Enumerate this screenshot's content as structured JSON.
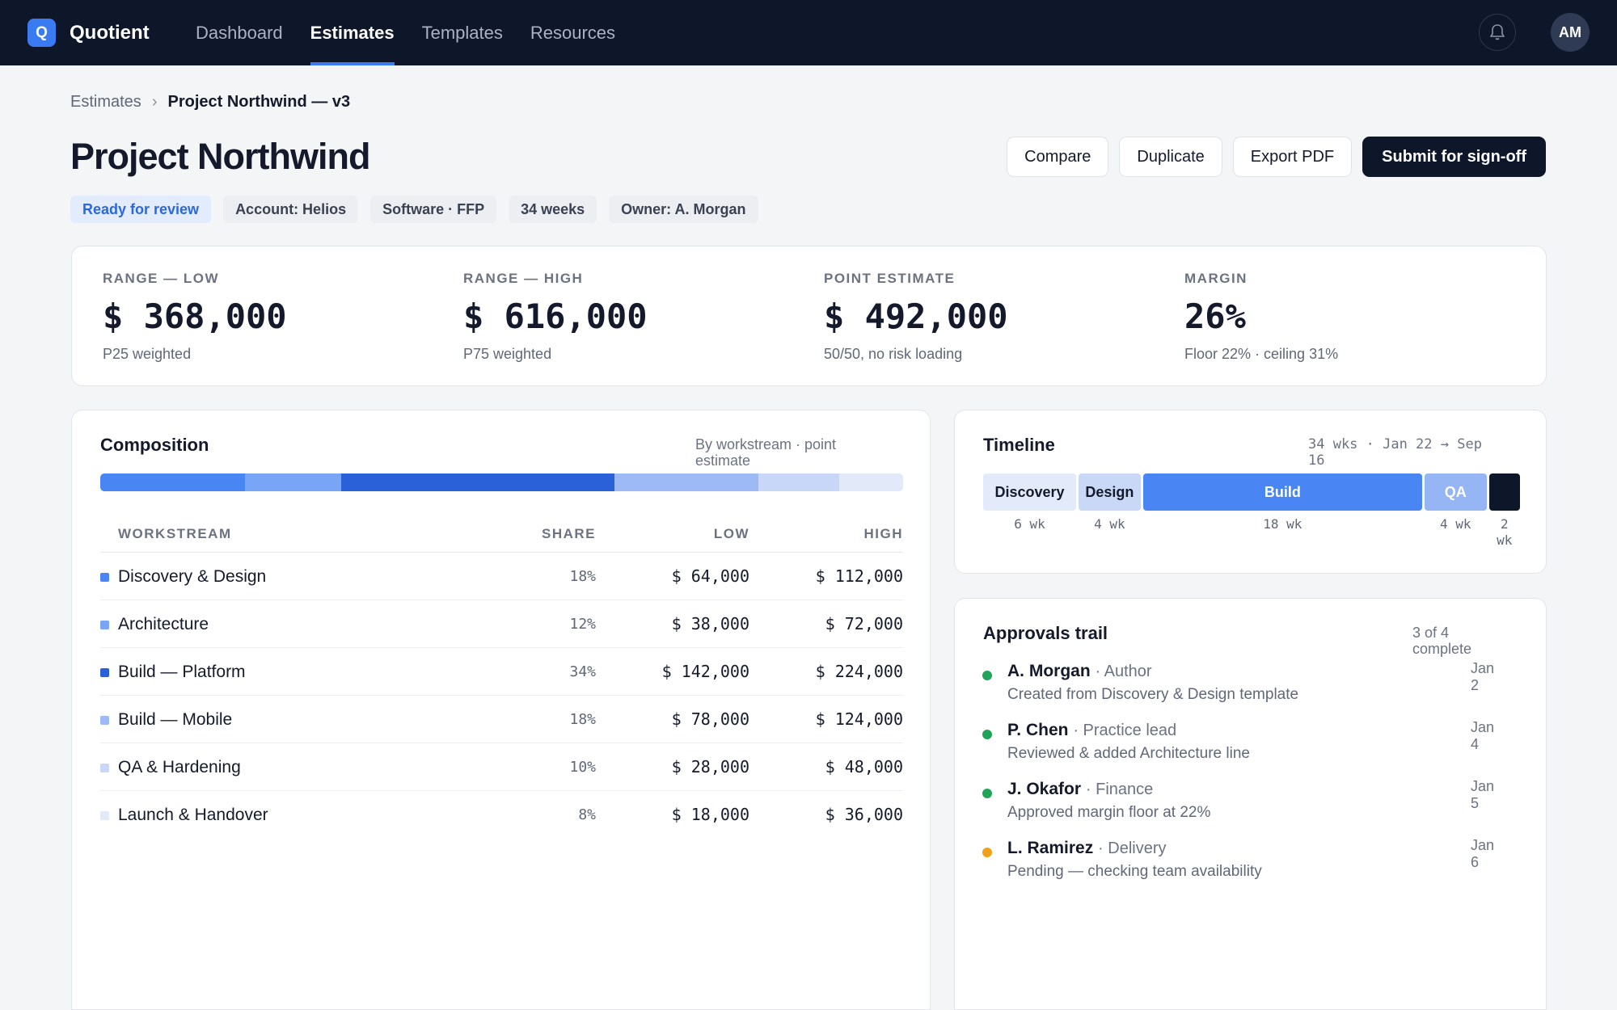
{
  "app": {
    "logo_letter": "Q",
    "name": "Quotient",
    "nav": [
      "Dashboard",
      "Estimates",
      "Templates",
      "Resources"
    ],
    "active_nav": "Estimates",
    "user_initials": "AM"
  },
  "breadcrumb": {
    "parent": "Estimates",
    "separator": "›",
    "current": "Project Northwind — v3"
  },
  "page": {
    "title": "Project Northwind",
    "actions": {
      "compare": "Compare",
      "duplicate": "Duplicate",
      "export": "Export PDF",
      "submit": "Submit for sign-off"
    },
    "tags": {
      "status": "Ready for review",
      "account": "Account: Helios",
      "type": "Software · FFP",
      "duration": "34 weeks",
      "owner": "Owner: A. Morgan"
    }
  },
  "stats": [
    {
      "label": "RANGE — LOW",
      "value": "$ 368,000",
      "sub": "P25 weighted"
    },
    {
      "label": "RANGE — HIGH",
      "value": "$ 616,000",
      "sub": "P75 weighted"
    },
    {
      "label": "POINT ESTIMATE",
      "value": "$ 492,000",
      "sub": "50/50, no risk loading"
    },
    {
      "label": "MARGIN",
      "value": "26%",
      "sub": "Floor 22% · ceiling 31%"
    }
  ],
  "composition": {
    "title": "Composition",
    "note": "By workstream · point estimate",
    "headers": {
      "workstream": "WORKSTREAM",
      "share": "SHARE",
      "low": "LOW",
      "high": "HIGH"
    },
    "rows": [
      {
        "name": "Discovery & Design",
        "share": "18%",
        "share_value": 18,
        "low": "$ 64,000",
        "high": "$ 112,000",
        "color": "#4a86f3"
      },
      {
        "name": "Architecture",
        "share": "12%",
        "share_value": 12,
        "low": "$ 38,000",
        "high": "$ 72,000",
        "color": "#79a5f6"
      },
      {
        "name": "Build — Platform",
        "share": "34%",
        "share_value": 34,
        "low": "$ 142,000",
        "high": "$ 224,000",
        "color": "#2b61d8"
      },
      {
        "name": "Build — Mobile",
        "share": "18%",
        "share_value": 18,
        "low": "$ 78,000",
        "high": "$ 124,000",
        "color": "#9dbaf6"
      },
      {
        "name": "QA & Hardening",
        "share": "10%",
        "share_value": 10,
        "low": "$ 28,000",
        "high": "$ 48,000",
        "color": "#c8d7f7"
      },
      {
        "name": "Launch & Handover",
        "share": "8%",
        "share_value": 8,
        "low": "$ 18,000",
        "high": "$ 36,000",
        "color": "#e2e9f8"
      }
    ]
  },
  "timeline": {
    "title": "Timeline",
    "note_line1": "34 wks · Jan 22 → Sep",
    "note_line2": "16",
    "phases": [
      {
        "label": "Discovery",
        "weeks_label": "6 wk",
        "weeks": 6,
        "bg": "#e3ebfb",
        "fg": "#141a2b"
      },
      {
        "label": "Design",
        "weeks_label": "4 wk",
        "weeks": 4,
        "bg": "#c9d8f6",
        "fg": "#141a2b"
      },
      {
        "label": "Build",
        "weeks_label": "18 wk",
        "weeks": 18,
        "bg": "#4a86f3",
        "fg": "#ffffff"
      },
      {
        "label": "QA",
        "weeks_label": "4 wk",
        "weeks": 4,
        "bg": "#95b5f5",
        "fg": "#ffffff"
      },
      {
        "label": "",
        "weeks_label_line1": "2",
        "weeks_label_line2": "wk",
        "weeks": 2,
        "bg": "#0e1629",
        "fg": "#ffffff"
      }
    ]
  },
  "approvals": {
    "title": "Approvals trail",
    "progress_line1": "3 of 4",
    "progress_line2": "complete",
    "items": [
      {
        "name": "A. Morgan",
        "role": "· Author",
        "desc": "Created from Discovery & Design template",
        "date_m": "Jan",
        "date_d": "2",
        "status": "done",
        "color": "#22a35a"
      },
      {
        "name": "P. Chen",
        "role": "· Practice lead",
        "desc": "Reviewed & added Architecture line",
        "date_m": "Jan",
        "date_d": "4",
        "status": "done",
        "color": "#22a35a"
      },
      {
        "name": "J. Okafor",
        "role": "· Finance",
        "desc": "Approved margin floor at 22%",
        "date_m": "Jan",
        "date_d": "5",
        "status": "done",
        "color": "#22a35a"
      },
      {
        "name": "L. Ramirez",
        "role": "· Delivery",
        "desc": "Pending — checking team availability",
        "date_m": "Jan",
        "date_d": "6",
        "status": "pending",
        "color": "#f0a11a"
      }
    ]
  },
  "icons": {
    "bell": "bell-icon",
    "breadcrumb_separator": "chevron-right-icon"
  }
}
